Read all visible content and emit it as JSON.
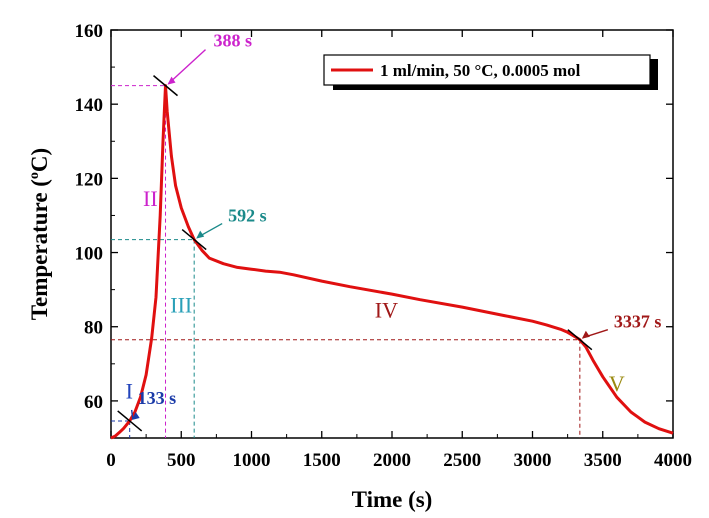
{
  "chart_data": {
    "type": "line",
    "xlabel": "Time (s)",
    "ylabel_main": "Temperature (",
    "ylabel_sup": "o",
    "ylabel_unit": "C)",
    "xlim": [
      0,
      4000
    ],
    "ylim": [
      50,
      160
    ],
    "xticks": [
      0,
      500,
      1000,
      1500,
      2000,
      2500,
      3000,
      3500,
      4000
    ],
    "yticks": [
      60,
      80,
      100,
      120,
      140,
      160
    ],
    "grid": false,
    "legend_position": "top-right",
    "series": [
      {
        "name": "1 ml/min, 50 °C, 0.0005 mol",
        "color": "#e01010",
        "points": [
          [
            0,
            50
          ],
          [
            30,
            50.5
          ],
          [
            60,
            51.5
          ],
          [
            90,
            52.6
          ],
          [
            133,
            54.6
          ],
          [
            170,
            57
          ],
          [
            210,
            61
          ],
          [
            250,
            67
          ],
          [
            290,
            77
          ],
          [
            320,
            88
          ],
          [
            350,
            110
          ],
          [
            370,
            130
          ],
          [
            388,
            145
          ],
          [
            400,
            138
          ],
          [
            430,
            126
          ],
          [
            460,
            118
          ],
          [
            500,
            112
          ],
          [
            550,
            107
          ],
          [
            592,
            103.5
          ],
          [
            650,
            100.5
          ],
          [
            700,
            98.5
          ],
          [
            800,
            97
          ],
          [
            900,
            96
          ],
          [
            1000,
            95.5
          ],
          [
            1100,
            95
          ],
          [
            1200,
            94.7
          ],
          [
            1300,
            94
          ],
          [
            1500,
            92.3
          ],
          [
            1700,
            90.8
          ],
          [
            2000,
            88.8
          ],
          [
            2200,
            87.3
          ],
          [
            2500,
            85.3
          ],
          [
            2800,
            83
          ],
          [
            3000,
            81.5
          ],
          [
            3100,
            80.5
          ],
          [
            3200,
            79.3
          ],
          [
            3250,
            78.5
          ],
          [
            3300,
            77.4
          ],
          [
            3337,
            76.5
          ],
          [
            3380,
            74.5
          ],
          [
            3430,
            71
          ],
          [
            3500,
            66.5
          ],
          [
            3600,
            61
          ],
          [
            3700,
            57
          ],
          [
            3800,
            54.3
          ],
          [
            3900,
            52.5
          ],
          [
            4000,
            51.3
          ]
        ]
      }
    ],
    "markers": [
      {
        "label": "388 s",
        "t": 388,
        "temp": 145,
        "color": "#cc22cc"
      },
      {
        "label": "592 s",
        "t": 592,
        "temp": 103.5,
        "color": "#1a8a8a"
      },
      {
        "label": "133 s",
        "t": 133,
        "temp": 54.6,
        "color": "#1a3aa8"
      },
      {
        "label": "3337 s",
        "t": 3337,
        "temp": 76.5,
        "color": "#a01818"
      }
    ],
    "regions": [
      {
        "label": "I",
        "t": 130,
        "temp": 60.7,
        "color": "#2244bb"
      },
      {
        "label": "II",
        "t": 280,
        "temp": 112.5,
        "color": "#cc22cc"
      },
      {
        "label": "III",
        "t": 500,
        "temp": 83.8,
        "color": "#2aa0b8"
      },
      {
        "label": "IV",
        "t": 1960,
        "temp": 82.5,
        "color": "#a01818"
      },
      {
        "label": "V",
        "t": 3600,
        "temp": 62.7,
        "color": "#9a8a10"
      }
    ]
  }
}
